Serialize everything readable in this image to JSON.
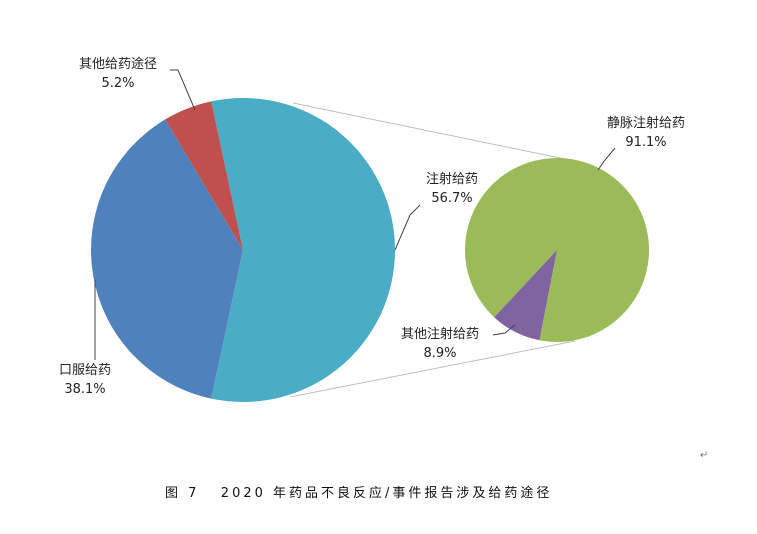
{
  "chart_data": {
    "type": "pie",
    "subtype": "pie-of-pie",
    "title": "图 7   2020 年药品不良反应/事件报告涉及给药途径",
    "main_pie": {
      "slices": [
        {
          "label": "注射给药",
          "value": 56.7,
          "value_label": "56.7%",
          "color": "#4BACC6"
        },
        {
          "label": "口服给药",
          "value": 38.1,
          "value_label": "38.1%",
          "color": "#4F81BD"
        },
        {
          "label": "其他给药途径",
          "value": 5.2,
          "value_label": "5.2%",
          "color": "#C0504D"
        }
      ]
    },
    "secondary_pie": {
      "breakdown_of": "注射给药",
      "slices": [
        {
          "label": "静脉注射给药",
          "value": 91.1,
          "value_label": "91.1%",
          "color": "#9BBB59"
        },
        {
          "label": "其他注射给药",
          "value": 8.9,
          "value_label": "8.9%",
          "color": "#8064A2"
        }
      ]
    },
    "connector_color": "#BFBFBF",
    "legend": "none"
  }
}
